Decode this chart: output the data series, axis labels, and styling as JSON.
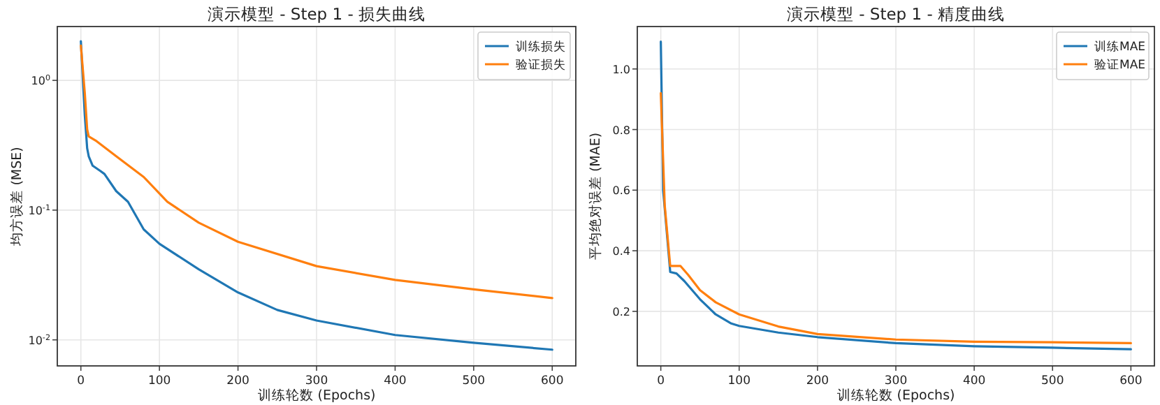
{
  "chart_data": [
    {
      "type": "line",
      "title": "演示模型 - Step 1 - 损失曲线",
      "xlabel": "训练轮数 (Epochs)",
      "ylabel": "均方误差 (MSE)",
      "log": "y",
      "grid": true,
      "legend": "top right",
      "xlim": [
        -30,
        630
      ],
      "ylim": [
        0.0063,
        2.6
      ],
      "xticks": [
        0,
        100,
        200,
        300,
        400,
        500,
        600
      ],
      "yticks": [
        {
          "value": 1,
          "label": "10$^{0}$"
        },
        {
          "value": 0.1,
          "label": "10$^{-1}$"
        },
        {
          "value": 0.01,
          "label": "10$^{-2}$"
        }
      ],
      "series": [
        {
          "name": "训练损失",
          "color": "#1f77b4",
          "x": [
            0,
            5,
            8,
            10,
            15,
            25,
            30,
            45,
            60,
            80,
            100,
            150,
            200,
            250,
            300,
            400,
            500,
            600
          ],
          "values": [
            2.0,
            0.54,
            0.3,
            0.26,
            0.22,
            0.2,
            0.19,
            0.14,
            0.116,
            0.071,
            0.055,
            0.035,
            0.0232,
            0.017,
            0.0141,
            0.0109,
            0.0095,
            0.0084
          ]
        },
        {
          "name": "验证损失",
          "color": "#ff7f0e",
          "x": [
            0,
            5,
            8,
            10,
            20,
            45,
            80,
            110,
            150,
            200,
            300,
            400,
            500,
            600
          ],
          "values": [
            1.85,
            0.8,
            0.42,
            0.37,
            0.34,
            0.26,
            0.18,
            0.116,
            0.08,
            0.057,
            0.037,
            0.029,
            0.0245,
            0.021
          ]
        }
      ]
    },
    {
      "type": "line",
      "title": "演示模型 - Step 1 - 精度曲线",
      "xlabel": "训练轮数 (Epochs)",
      "ylabel": "平均绝对误差 (MAE)",
      "grid": true,
      "legend": "top right",
      "xlim": [
        -30,
        630
      ],
      "ylim": [
        0.02,
        1.14
      ],
      "xticks": [
        0,
        100,
        200,
        300,
        400,
        500,
        600
      ],
      "yticks": [
        {
          "value": 0.2,
          "label": "0.2"
        },
        {
          "value": 0.4,
          "label": "0.4"
        },
        {
          "value": 0.6,
          "label": "0.6"
        },
        {
          "value": 0.8,
          "label": "0.8"
        },
        {
          "value": 1.0,
          "label": "1.0"
        }
      ],
      "series": [
        {
          "name": "训练MAE",
          "color": "#1f77b4",
          "x": [
            0,
            3,
            12,
            20,
            30,
            50,
            70,
            90,
            100,
            150,
            200,
            300,
            400,
            500,
            600
          ],
          "values": [
            1.09,
            0.6,
            0.33,
            0.325,
            0.3,
            0.24,
            0.19,
            0.16,
            0.152,
            0.13,
            0.115,
            0.095,
            0.085,
            0.08,
            0.075
          ]
        },
        {
          "name": "验证MAE",
          "color": "#ff7f0e",
          "x": [
            0,
            5,
            12,
            25,
            35,
            50,
            70,
            100,
            150,
            200,
            300,
            400,
            500,
            600
          ],
          "values": [
            0.92,
            0.55,
            0.35,
            0.35,
            0.32,
            0.27,
            0.23,
            0.19,
            0.15,
            0.125,
            0.107,
            0.1,
            0.098,
            0.095
          ]
        }
      ]
    }
  ]
}
